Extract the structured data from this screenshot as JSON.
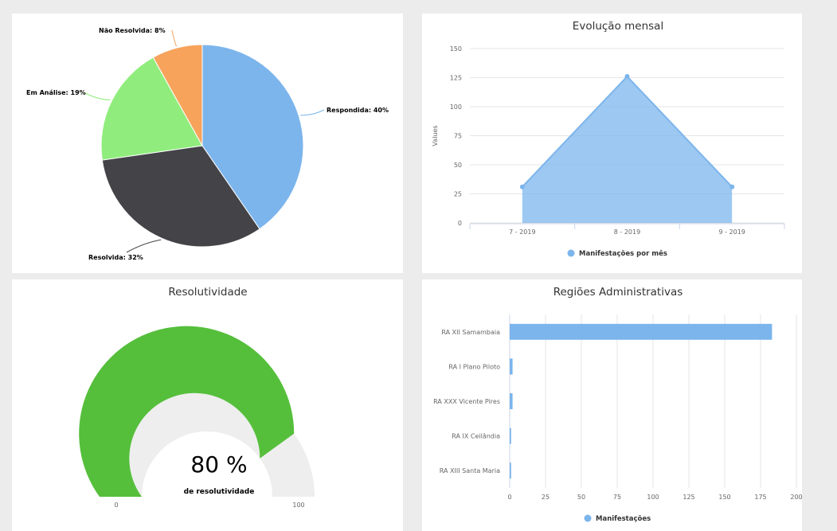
{
  "chart_data": [
    {
      "type": "pie",
      "slices": [
        {
          "name": "Respondida",
          "value": 40,
          "label": "Respondida: 40%",
          "color": "#7cb5ec"
        },
        {
          "name": "Resolvida",
          "value": 32,
          "label": "Resolvida: 32%",
          "color": "#434348"
        },
        {
          "name": "Em Análise",
          "value": 19,
          "label": "Em Análise: 19%",
          "color": "#90ed7d"
        },
        {
          "name": "Não Resolvida",
          "value": 8,
          "label": "Não Resolvida: 8%",
          "color": "#f7a35c"
        }
      ]
    },
    {
      "type": "area",
      "title": "Evolução mensal",
      "ylabel": "Values",
      "categories": [
        "7 - 2019",
        "8 - 2019",
        "9 - 2019"
      ],
      "series": [
        {
          "name": "Manifestações por mês",
          "values": [
            31,
            126,
            31
          ],
          "color": "#7cb5ec"
        }
      ],
      "ylim": [
        0,
        150
      ],
      "yticks": [
        "0",
        "25",
        "50",
        "75",
        "100",
        "125",
        "150"
      ],
      "grid": true,
      "legend": "bottom"
    },
    {
      "type": "gauge",
      "title": "Resolutividade",
      "value": 80,
      "value_text": "80 %",
      "subtitle": "de resolutividade",
      "min": 0,
      "max": 100,
      "min_label": "0",
      "max_label": "100",
      "color": "#55bf3b",
      "track_color": "#eeeeee"
    },
    {
      "type": "bar",
      "orientation": "horizontal",
      "title": "Regiões Administrativas",
      "categories": [
        "RA XII Samambaia",
        "RA I Plano Piloto",
        "RA XXX Vicente Pires",
        "RA IX Ceilândia",
        "RA XIII Santa Maria"
      ],
      "series": [
        {
          "name": "Manifestações",
          "values": [
            183,
            2,
            2,
            1,
            1
          ],
          "color": "#7cb5ec"
        }
      ],
      "xlim": [
        0,
        200
      ],
      "xticks": [
        "0",
        "25",
        "50",
        "75",
        "100",
        "125",
        "150",
        "175",
        "200"
      ],
      "grid": true,
      "legend": "bottom"
    }
  ]
}
